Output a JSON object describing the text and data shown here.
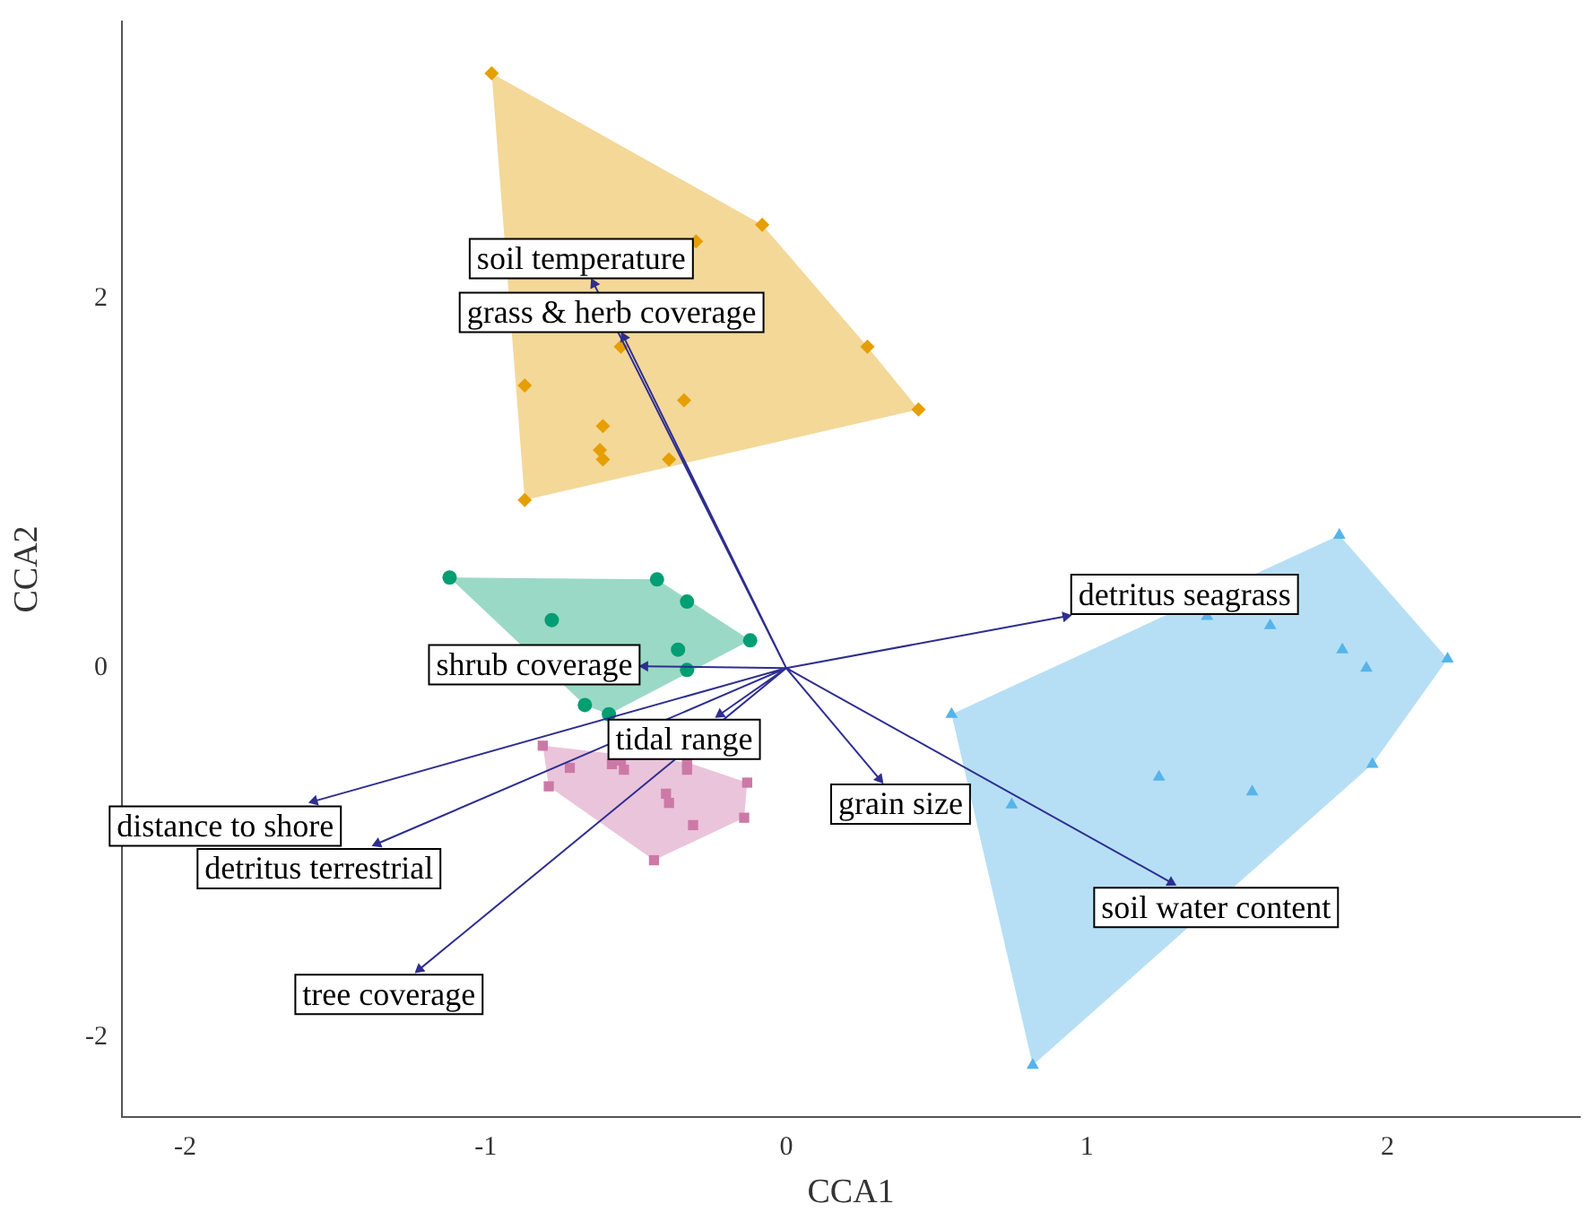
{
  "chart_data": {
    "type": "scatter",
    "xlabel": "CCA1",
    "ylabel": "CCA2",
    "xlim": [
      -2.21,
      2.64
    ],
    "ylim": [
      -2.43,
      3.5
    ],
    "xticks": [
      -2,
      -1,
      0,
      1,
      2
    ],
    "yticks": [
      -2,
      0,
      2
    ],
    "grid": false,
    "legend": false,
    "series": [
      {
        "type": "area",
        "color": "#f3d898",
        "x": [
          -0.98,
          -0.08,
          0.27,
          0.44,
          -0.87
        ],
        "values": [
          3.22,
          2.4,
          1.74,
          1.4,
          0.91
        ]
      },
      {
        "type": "area",
        "color": "#9ad9c5",
        "x": [
          -1.12,
          -0.43,
          -0.12,
          -0.59,
          -0.67
        ],
        "values": [
          0.49,
          0.48,
          0.15,
          -0.25,
          -0.2
        ]
      },
      {
        "type": "area",
        "color": "#eac4db",
        "x": [
          -0.81,
          -0.33,
          -0.13,
          -0.14,
          -0.44,
          -0.79
        ],
        "values": [
          -0.42,
          -0.51,
          -0.62,
          -0.81,
          -1.04,
          -0.64
        ]
      },
      {
        "type": "area",
        "color": "#b6dff5",
        "x": [
          1.84,
          2.2,
          1.95,
          0.82,
          0.55
        ],
        "values": [
          0.72,
          0.05,
          -0.52,
          -2.15,
          -0.25
        ]
      },
      {
        "type": "scatter",
        "color": "#e69f00",
        "marker": "diamond",
        "x": [
          -0.98,
          -0.08,
          -0.3,
          0.27,
          0.44,
          -0.55,
          -0.87,
          -0.34,
          -0.61,
          -0.62,
          -0.61,
          -0.39,
          -0.87
        ],
        "values": [
          3.22,
          2.4,
          2.31,
          1.74,
          1.4,
          1.74,
          1.53,
          1.45,
          1.31,
          1.18,
          1.13,
          1.13,
          0.91
        ]
      },
      {
        "type": "scatter",
        "color": "#009e73",
        "marker": "circle",
        "x": [
          -1.12,
          -0.43,
          -0.33,
          -0.78,
          -0.12,
          -0.36,
          -0.33,
          -0.67,
          -0.59
        ],
        "values": [
          0.49,
          0.48,
          0.36,
          0.26,
          0.15,
          0.1,
          -0.01,
          -0.2,
          -0.25
        ]
      },
      {
        "type": "scatter",
        "color": "#cc79a7",
        "marker": "square",
        "x": [
          -0.81,
          -0.72,
          -0.79,
          -0.58,
          -0.55,
          -0.54,
          -0.33,
          -0.33,
          -0.13,
          -0.4,
          -0.39,
          -0.31,
          -0.14,
          -0.44
        ],
        "values": [
          -0.42,
          -0.54,
          -0.64,
          -0.52,
          -0.5,
          -0.55,
          -0.51,
          -0.55,
          -0.62,
          -0.68,
          -0.73,
          -0.85,
          -0.81,
          -1.04
        ]
      },
      {
        "type": "scatter",
        "color": "#56b4e9",
        "marker": "triangle",
        "x": [
          1.84,
          1.4,
          1.61,
          1.85,
          1.93,
          2.2,
          0.55,
          1.24,
          1.55,
          1.95,
          0.75,
          0.82
        ],
        "values": [
          0.72,
          0.28,
          0.23,
          0.1,
          0.0,
          0.05,
          -0.25,
          -0.59,
          -0.67,
          -0.52,
          -0.74,
          -2.15
        ]
      },
      {
        "type": "line",
        "color": "#2e2e8f",
        "marker": "triangle",
        "x": [
          0,
          -0.64,
          0,
          -0.54,
          0,
          -0.47,
          0,
          0.93,
          0,
          -0.22,
          0,
          -1.57,
          0,
          -1.36,
          0,
          0.31,
          0,
          1.28,
          0,
          -1.22
        ],
        "values": [
          0,
          2.08,
          0,
          1.79,
          0,
          0.01,
          0,
          0.28,
          0,
          -0.25,
          0,
          -0.72,
          0,
          -0.95,
          0,
          -0.6,
          0,
          -1.16,
          0,
          -1.63
        ]
      }
    ],
    "annotations": [
      {
        "text": "soil temperature",
        "x": -0.64,
        "y": 2.08
      },
      {
        "text": "grass & herb coverage",
        "x": -0.54,
        "y": 1.79
      },
      {
        "text": "shrub coverage",
        "x": -0.47,
        "y": 0.01
      },
      {
        "text": "detritus seagrass",
        "x": 0.93,
        "y": 0.28
      },
      {
        "text": "tidal range",
        "x": -0.22,
        "y": -0.25
      },
      {
        "text": "distance to shore",
        "x": -1.57,
        "y": -0.72
      },
      {
        "text": "detritus terrestrial",
        "x": -1.36,
        "y": -0.95
      },
      {
        "text": "grain size",
        "x": 0.31,
        "y": -0.6
      },
      {
        "text": "soil water content",
        "x": 1.28,
        "y": -1.16
      },
      {
        "text": "tree coverage",
        "x": -1.22,
        "y": -1.63
      }
    ]
  }
}
